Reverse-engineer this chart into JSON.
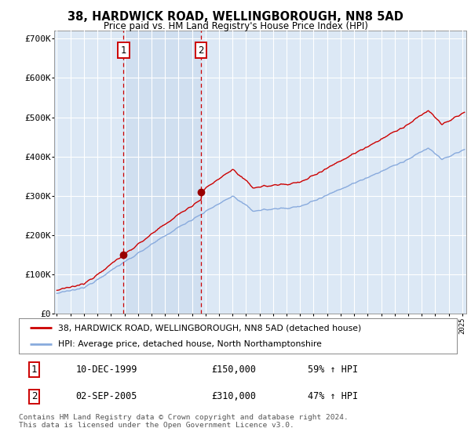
{
  "title": "38, HARDWICK ROAD, WELLINGBOROUGH, NN8 5AD",
  "subtitle": "Price paid vs. HM Land Registry's House Price Index (HPI)",
  "background_color": "#ffffff",
  "plot_bg_color": "#dce8f5",
  "shade_color": "#c8daee",
  "grid_color": "#ffffff",
  "ylim": [
    0,
    720000
  ],
  "yticks": [
    0,
    100000,
    200000,
    300000,
    400000,
    500000,
    600000,
    700000
  ],
  "ytick_labels": [
    "£0",
    "£100K",
    "£200K",
    "£300K",
    "£400K",
    "£500K",
    "£600K",
    "£700K"
  ],
  "sale1_price": 150000,
  "sale1_label": "1",
  "sale1_x_year": 1999.94,
  "sale2_price": 310000,
  "sale2_label": "2",
  "sale2_x_year": 2005.67,
  "legend_line1": "38, HARDWICK ROAD, WELLINGBOROUGH, NN8 5AD (detached house)",
  "legend_line2": "HPI: Average price, detached house, North Northamptonshire",
  "table_row1_num": "1",
  "table_row1_date": "10-DEC-1999",
  "table_row1_price": "£150,000",
  "table_row1_hpi": "59% ↑ HPI",
  "table_row2_num": "2",
  "table_row2_date": "02-SEP-2005",
  "table_row2_price": "£310,000",
  "table_row2_hpi": "47% ↑ HPI",
  "footer": "Contains HM Land Registry data © Crown copyright and database right 2024.\nThis data is licensed under the Open Government Licence v3.0.",
  "sale_dot_color": "#990000",
  "hpi_line_color": "#88aadd",
  "price_line_color": "#cc0000",
  "vline_color": "#cc0000",
  "box_color": "#cc0000",
  "xmin": 1995.0,
  "xmax": 2025.3
}
